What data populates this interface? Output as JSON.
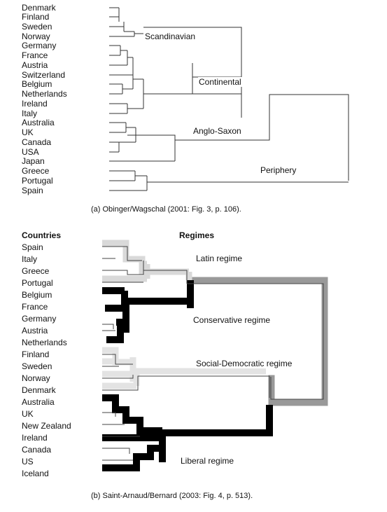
{
  "panel_a": {
    "countries": [
      "Denmark",
      "Finland",
      "Sweden",
      "Norway",
      "Germany",
      "France",
      "Austria",
      "Switzerland",
      "Belgium",
      "Netherlands",
      "Ireland",
      "Italy",
      "Australia",
      "UK",
      "Canada",
      "USA",
      "Japan",
      "Greece",
      "Portugal",
      "Spain"
    ],
    "clusters": {
      "scandinavian": "Scandinavian",
      "continental": "Continental",
      "anglo_saxon": "Anglo-Saxon",
      "periphery": "Periphery"
    },
    "caption": "(a) Obinger/Wagschal (2001: Fig. 3, p. 106)."
  },
  "panel_b": {
    "countries_header": "Countries",
    "regimes_header": "Regimes",
    "countries": [
      "Spain",
      "Italy",
      "Greece",
      "Portugal",
      "Belgium",
      "France",
      "Germany",
      "Austria",
      "Netherlands",
      "Finland",
      "Sweden",
      "Norway",
      "Denmark",
      "Australia",
      "UK",
      "New Zealand",
      "Ireland",
      "Canada",
      "US",
      "Iceland"
    ],
    "regimes": {
      "latin": "Latin regime",
      "conservative": "Conservative regime",
      "social_democratic": "Social-Democratic regime",
      "liberal": "Liberal regime"
    },
    "caption": "(b) Saint-Arnaud/Bernard (2003: Fig. 4, p. 513)."
  },
  "colors": {
    "line": "#333333",
    "black_band": "#000000",
    "grey_band": "#999999",
    "light_band": "#d9d9d9"
  }
}
